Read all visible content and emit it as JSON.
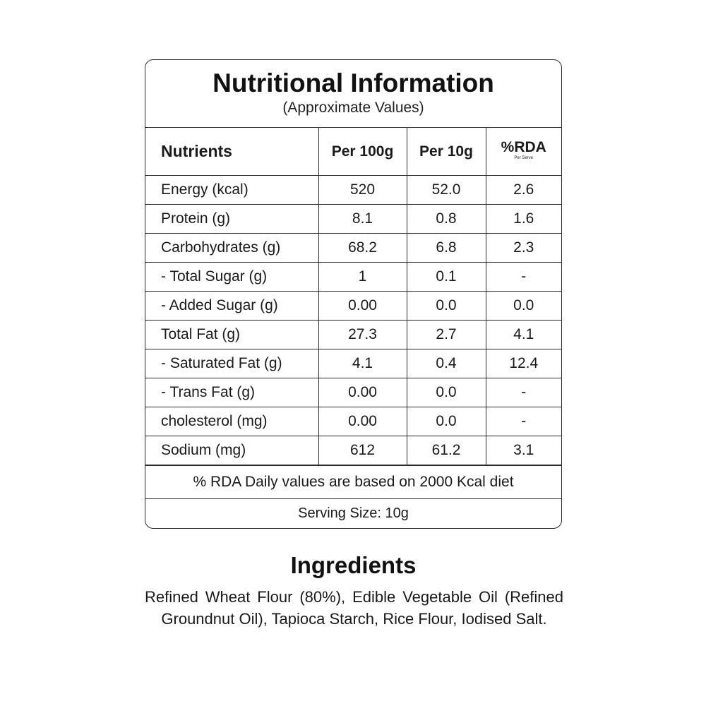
{
  "header": {
    "title": "Nutritional Information",
    "subtitle": "(Approximate Values)"
  },
  "columns": {
    "nutrients": "Nutrients",
    "per100": "Per 100g",
    "per10": "Per 10g",
    "rda": "%RDA",
    "rda_sub": "Per Serve"
  },
  "rows": [
    {
      "name": "Energy (kcal)",
      "per100": "520",
      "per10": "52.0",
      "rda": "2.6"
    },
    {
      "name": "Protein (g)",
      "per100": "8.1",
      "per10": "0.8",
      "rda": "1.6"
    },
    {
      "name": "Carbohydrates (g)",
      "per100": "68.2",
      "per10": "6.8",
      "rda": "2.3"
    },
    {
      "name": "- Total Sugar (g)",
      "per100": "1",
      "per10": "0.1",
      "rda": "-"
    },
    {
      "name": "- Added Sugar (g)",
      "per100": "0.00",
      "per10": "0.0",
      "rda": "0.0"
    },
    {
      "name": "Total Fat (g)",
      "per100": "27.3",
      "per10": "2.7",
      "rda": "4.1"
    },
    {
      "name": "- Saturated Fat (g)",
      "per100": "4.1",
      "per10": "0.4",
      "rda": "12.4"
    },
    {
      "name": "- Trans Fat (g)",
      "per100": "0.00",
      "per10": "0.0",
      "rda": "-"
    },
    {
      "name": "cholesterol (mg)",
      "per100": "0.00",
      "per10": "0.0",
      "rda": "-"
    },
    {
      "name": "Sodium (mg)",
      "per100": "612",
      "per10": "61.2",
      "rda": "3.1"
    }
  ],
  "footnote": "% RDA Daily values are based on 2000 Kcal diet",
  "serving": "Serving Size: 10g",
  "ingredients": {
    "title": "Ingredients",
    "text": "Refined Wheat Flour (80%), Edible Vegetable Oil (Refined Groundnut Oil), Tapioca Starch, Rice Flour, Iodised Salt."
  }
}
